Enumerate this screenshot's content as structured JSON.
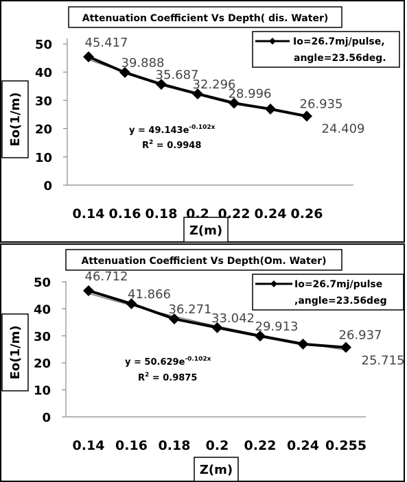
{
  "chart_data": [
    {
      "type": "line",
      "title": "Attenuation Coefficient Vs Depth( dis. Water)",
      "xlabel": "Z(m)",
      "ylabel": "Eo(1/m)",
      "categories": [
        "0.14",
        "0.16",
        "0.18",
        "0.2",
        "0.22",
        "0.24",
        "0.26"
      ],
      "series": [
        {
          "name": "Io=26.7mj/pulse, angle=23.56deg.",
          "values": [
            45.417,
            39.888,
            35.687,
            32.296,
            28.996,
            26.935,
            24.409
          ],
          "labels": [
            "45.417",
            "39.888",
            "35.687",
            "32.296",
            "28.996",
            "26.935",
            "24.409"
          ]
        }
      ],
      "legend_lines": [
        "Io=26.7mj/pulse,",
        "angle=23.56deg."
      ],
      "yticks": [
        "0",
        "10",
        "20",
        "30",
        "40",
        "50"
      ],
      "ylim": [
        0,
        50
      ],
      "trendline": {
        "equation_base": "y = 49.143e",
        "exponent": "-0.102x",
        "r2_prefix": "R",
        "r2_sup": "2",
        "r2_value": " = 0.9948"
      },
      "legend_position": "top-right",
      "grid": false
    },
    {
      "type": "line",
      "title": "Attenuation Coefficient Vs Depth(Om. Water)",
      "xlabel": "Z(m)",
      "ylabel": "Eo(1/m)",
      "categories": [
        "0.14",
        "0.16",
        "0.18",
        "0.2",
        "0.22",
        "0.24",
        "0.255"
      ],
      "series": [
        {
          "name": "Io=26.7mj/pulse ,angle=23.56deg",
          "values": [
            46.712,
            41.866,
            36.271,
            33.042,
            29.913,
            26.937,
            25.715
          ],
          "labels": [
            "46.712",
            "41.866",
            "36.271",
            "33.042",
            "29.913",
            "26.937",
            "25.715"
          ]
        }
      ],
      "legend_lines": [
        "Io=26.7mj/pulse",
        ",angle=23.56deg"
      ],
      "yticks": [
        "0",
        "10",
        "20",
        "30",
        "40",
        "50"
      ],
      "ylim": [
        0,
        50
      ],
      "trendline": {
        "equation_base": "y = 50.629e",
        "exponent": "-0.102x",
        "r2_prefix": "R",
        "r2_sup": "2",
        "r2_value": " = 0.9875"
      },
      "legend_position": "top-right",
      "grid": false
    }
  ]
}
